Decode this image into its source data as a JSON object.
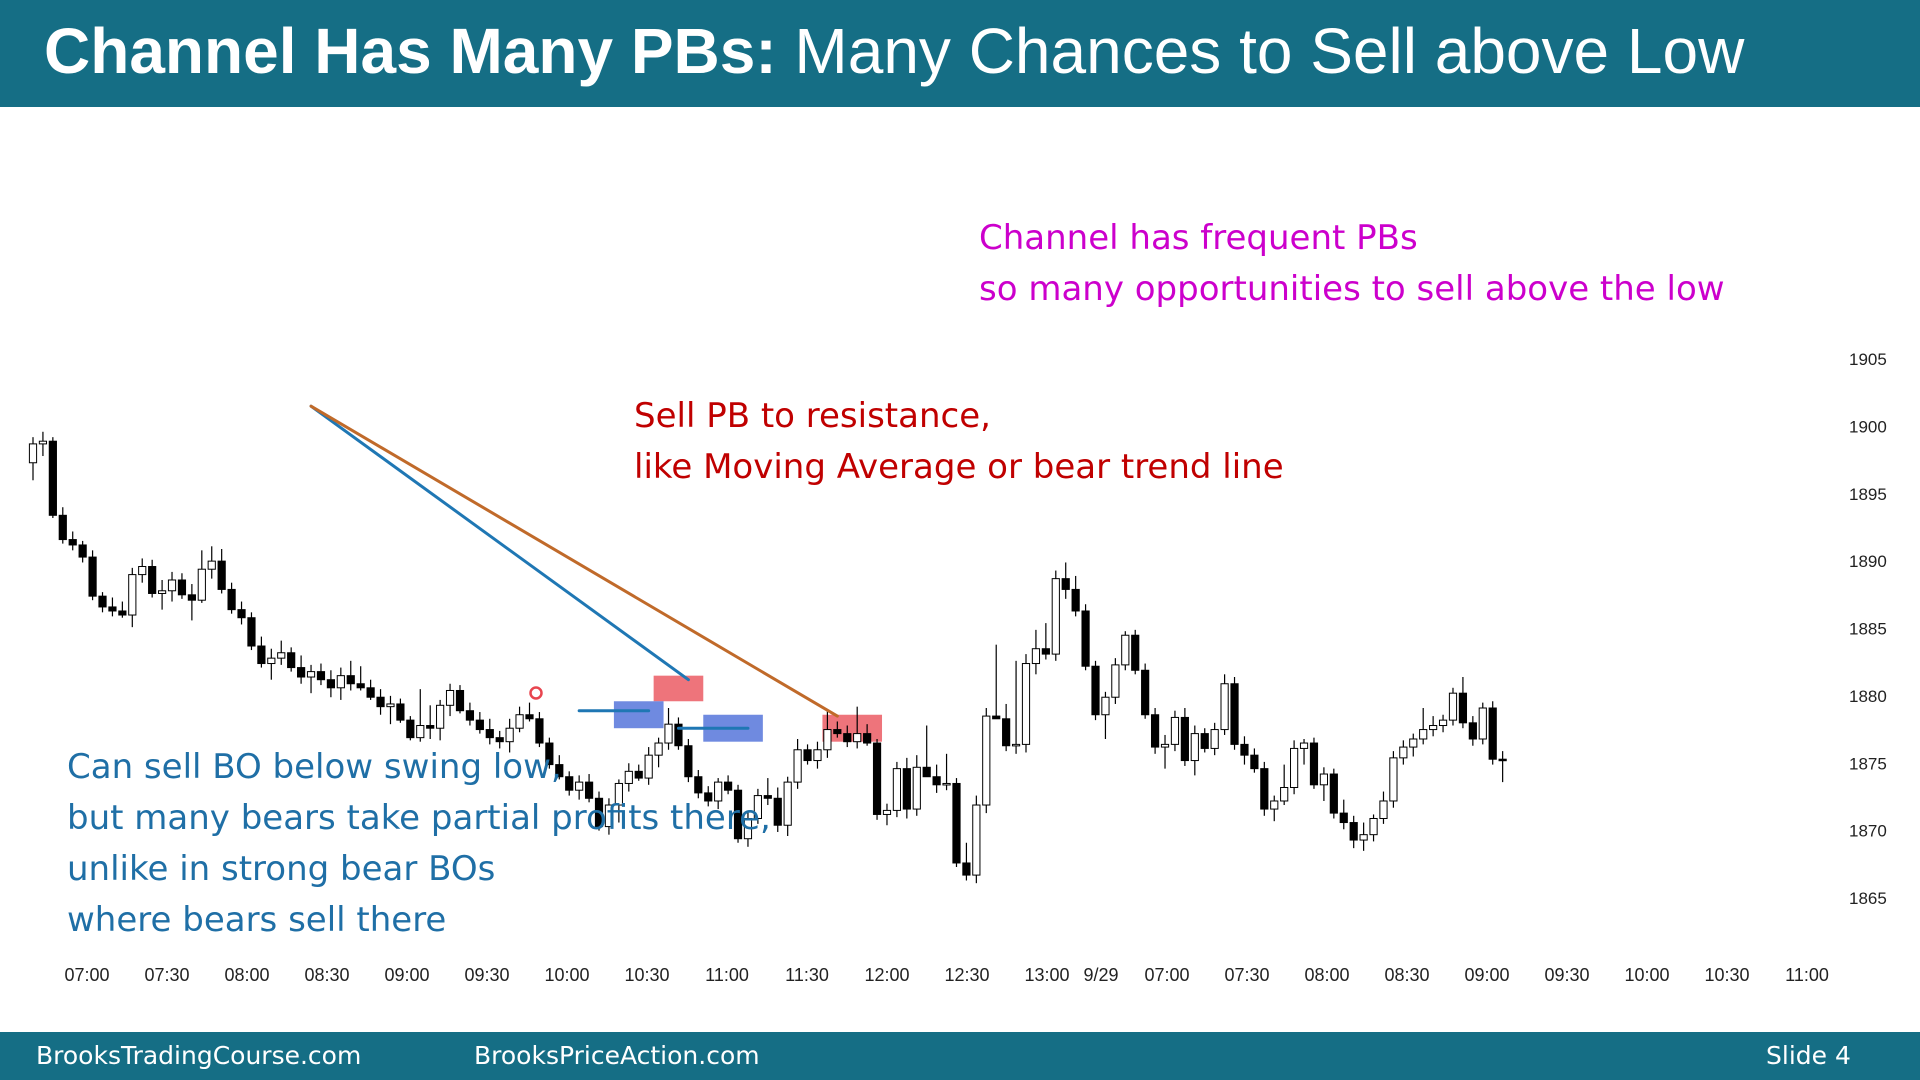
{
  "title": {
    "bold": "Channel Has Many PBs:",
    "regular": " Many Chances to Sell above Low"
  },
  "footer": {
    "left": "BrooksTradingCourse.com",
    "center": "BrooksPriceAction.com",
    "right": "Slide  4"
  },
  "annotations": {
    "magenta": [
      "Channel has frequent PBs",
      "so many opportunities to sell above the low"
    ],
    "red": [
      "Sell PB to resistance,",
      "like Moving Average or bear trend line"
    ],
    "blue": [
      "Can sell BO below swing low,",
      "but many bears take partial profits there,",
      "unlike in strong bear BOs",
      "where bears sell there"
    ]
  },
  "colors": {
    "title_bar": "#156e85",
    "magenta_text": "#cc00cc",
    "red_text": "#c00000",
    "blue_text": "#1f6fa6",
    "blue_trend_line": "#1f77b4",
    "orange_trend_line": "#c06a2a",
    "sell_highlight": "#e8454f",
    "breakout_highlight": "#3f63d6"
  },
  "chart_data": {
    "type": "candlestick",
    "x_tick_labels": [
      "07:00",
      "07:30",
      "08:00",
      "08:30",
      "09:00",
      "09:30",
      "10:00",
      "10:30",
      "11:00",
      "11:30",
      "12:00",
      "12:30",
      "13:00",
      "9/29",
      "07:00",
      "07:30",
      "08:00",
      "08:30",
      "09:00",
      "09:30",
      "10:00",
      "10:30",
      "11:00"
    ],
    "y_ticks": [
      1905,
      1900,
      1895,
      1890,
      1885,
      1880,
      1875,
      1870,
      1865
    ],
    "ylim": [
      1862,
      1912
    ],
    "candles": [
      {
        "o": 1897.3,
        "h": 1899.2,
        "l": 1896.0,
        "c": 1898.7
      },
      {
        "o": 1898.7,
        "h": 1899.6,
        "l": 1897.8,
        "c": 1898.9
      },
      {
        "o": 1898.9,
        "h": 1899.2,
        "l": 1893.2,
        "c": 1893.4
      },
      {
        "o": 1893.4,
        "h": 1894.0,
        "l": 1891.3,
        "c": 1891.6
      },
      {
        "o": 1891.6,
        "h": 1892.2,
        "l": 1890.8,
        "c": 1891.2
      },
      {
        "o": 1891.2,
        "h": 1891.5,
        "l": 1889.9,
        "c": 1890.3
      },
      {
        "o": 1890.3,
        "h": 1890.8,
        "l": 1887.1,
        "c": 1887.4
      },
      {
        "o": 1887.4,
        "h": 1887.7,
        "l": 1886.2,
        "c": 1886.6
      },
      {
        "o": 1886.6,
        "h": 1887.3,
        "l": 1885.9,
        "c": 1886.3
      },
      {
        "o": 1886.3,
        "h": 1887.0,
        "l": 1885.8,
        "c": 1886.0
      },
      {
        "o": 1886.0,
        "h": 1889.5,
        "l": 1885.1,
        "c": 1889.0
      },
      {
        "o": 1889.0,
        "h": 1890.2,
        "l": 1888.4,
        "c": 1889.6
      },
      {
        "o": 1889.6,
        "h": 1890.1,
        "l": 1887.3,
        "c": 1887.6
      },
      {
        "o": 1887.6,
        "h": 1888.6,
        "l": 1886.4,
        "c": 1887.8
      },
      {
        "o": 1887.8,
        "h": 1889.2,
        "l": 1887.0,
        "c": 1888.6
      },
      {
        "o": 1888.6,
        "h": 1889.1,
        "l": 1887.2,
        "c": 1887.5
      },
      {
        "o": 1887.5,
        "h": 1888.3,
        "l": 1885.6,
        "c": 1887.1
      },
      {
        "o": 1887.1,
        "h": 1890.8,
        "l": 1886.9,
        "c": 1889.4
      },
      {
        "o": 1889.4,
        "h": 1891.1,
        "l": 1888.7,
        "c": 1890.0
      },
      {
        "o": 1890.0,
        "h": 1890.9,
        "l": 1887.6,
        "c": 1887.9
      },
      {
        "o": 1887.9,
        "h": 1888.4,
        "l": 1886.1,
        "c": 1886.4
      },
      {
        "o": 1886.4,
        "h": 1887.0,
        "l": 1885.3,
        "c": 1885.8
      },
      {
        "o": 1885.8,
        "h": 1886.2,
        "l": 1883.4,
        "c": 1883.7
      },
      {
        "o": 1883.7,
        "h": 1884.4,
        "l": 1882.1,
        "c": 1882.4
      },
      {
        "o": 1882.4,
        "h": 1883.5,
        "l": 1881.2,
        "c": 1882.8
      },
      {
        "o": 1882.8,
        "h": 1884.1,
        "l": 1882.3,
        "c": 1883.2
      },
      {
        "o": 1883.2,
        "h": 1883.6,
        "l": 1881.8,
        "c": 1882.1
      },
      {
        "o": 1882.1,
        "h": 1883.0,
        "l": 1880.9,
        "c": 1881.4
      },
      {
        "o": 1881.4,
        "h": 1882.3,
        "l": 1880.2,
        "c": 1881.8
      },
      {
        "o": 1881.8,
        "h": 1882.4,
        "l": 1880.8,
        "c": 1881.2
      },
      {
        "o": 1881.2,
        "h": 1881.9,
        "l": 1879.9,
        "c": 1880.6
      },
      {
        "o": 1880.6,
        "h": 1882.1,
        "l": 1879.7,
        "c": 1881.5
      },
      {
        "o": 1881.5,
        "h": 1882.6,
        "l": 1880.4,
        "c": 1880.9
      },
      {
        "o": 1880.9,
        "h": 1882.2,
        "l": 1880.4,
        "c": 1880.6
      },
      {
        "o": 1880.6,
        "h": 1881.2,
        "l": 1879.7,
        "c": 1879.9
      },
      {
        "o": 1879.9,
        "h": 1880.5,
        "l": 1878.6,
        "c": 1879.2
      },
      {
        "o": 1879.2,
        "h": 1880.0,
        "l": 1877.9,
        "c": 1879.4
      },
      {
        "o": 1879.4,
        "h": 1879.8,
        "l": 1878.0,
        "c": 1878.2
      },
      {
        "o": 1878.2,
        "h": 1878.5,
        "l": 1876.7,
        "c": 1876.9
      },
      {
        "o": 1876.9,
        "h": 1880.5,
        "l": 1876.6,
        "c": 1877.8
      },
      {
        "o": 1877.8,
        "h": 1879.3,
        "l": 1876.8,
        "c": 1877.6
      },
      {
        "o": 1877.6,
        "h": 1879.7,
        "l": 1876.7,
        "c": 1879.3
      },
      {
        "o": 1879.3,
        "h": 1880.9,
        "l": 1878.5,
        "c": 1880.4
      },
      {
        "o": 1880.4,
        "h": 1880.8,
        "l": 1878.7,
        "c": 1878.9
      },
      {
        "o": 1878.9,
        "h": 1879.5,
        "l": 1877.8,
        "c": 1878.2
      },
      {
        "o": 1878.2,
        "h": 1878.8,
        "l": 1877.2,
        "c": 1877.5
      },
      {
        "o": 1877.5,
        "h": 1878.3,
        "l": 1876.4,
        "c": 1876.9
      },
      {
        "o": 1876.9,
        "h": 1877.4,
        "l": 1876.1,
        "c": 1876.6
      },
      {
        "o": 1876.6,
        "h": 1878.3,
        "l": 1875.8,
        "c": 1877.6
      },
      {
        "o": 1877.6,
        "h": 1879.2,
        "l": 1877.3,
        "c": 1878.6
      },
      {
        "o": 1878.6,
        "h": 1879.5,
        "l": 1878.1,
        "c": 1878.3
      },
      {
        "o": 1878.3,
        "h": 1878.8,
        "l": 1876.2,
        "c": 1876.5
      },
      {
        "o": 1876.5,
        "h": 1876.9,
        "l": 1874.6,
        "c": 1874.9
      },
      {
        "o": 1874.9,
        "h": 1875.6,
        "l": 1873.8,
        "c": 1874.0
      },
      {
        "o": 1874.0,
        "h": 1874.4,
        "l": 1872.6,
        "c": 1873.0
      },
      {
        "o": 1873.0,
        "h": 1874.1,
        "l": 1872.3,
        "c": 1873.6
      },
      {
        "o": 1873.6,
        "h": 1874.2,
        "l": 1872.1,
        "c": 1872.4
      },
      {
        "o": 1872.4,
        "h": 1872.9,
        "l": 1870.0,
        "c": 1870.3
      },
      {
        "o": 1870.3,
        "h": 1872.4,
        "l": 1869.7,
        "c": 1871.9
      },
      {
        "o": 1871.9,
        "h": 1873.8,
        "l": 1870.6,
        "c": 1873.5
      },
      {
        "o": 1873.5,
        "h": 1875.0,
        "l": 1872.9,
        "c": 1874.4
      },
      {
        "o": 1874.4,
        "h": 1874.9,
        "l": 1873.7,
        "c": 1873.9
      },
      {
        "o": 1873.9,
        "h": 1876.2,
        "l": 1873.4,
        "c": 1875.6
      },
      {
        "o": 1875.6,
        "h": 1876.9,
        "l": 1874.7,
        "c": 1876.5
      },
      {
        "o": 1876.5,
        "h": 1879.1,
        "l": 1876.0,
        "c": 1877.9
      },
      {
        "o": 1877.9,
        "h": 1878.4,
        "l": 1876.0,
        "c": 1876.3
      },
      {
        "o": 1876.3,
        "h": 1876.8,
        "l": 1873.6,
        "c": 1874.0
      },
      {
        "o": 1874.0,
        "h": 1874.5,
        "l": 1872.4,
        "c": 1872.8
      },
      {
        "o": 1872.8,
        "h": 1873.3,
        "l": 1871.8,
        "c": 1872.2
      },
      {
        "o": 1872.2,
        "h": 1873.9,
        "l": 1871.6,
        "c": 1873.6
      },
      {
        "o": 1873.6,
        "h": 1874.1,
        "l": 1872.7,
        "c": 1873.0
      },
      {
        "o": 1873.0,
        "h": 1873.4,
        "l": 1869.1,
        "c": 1869.4
      },
      {
        "o": 1869.4,
        "h": 1871.4,
        "l": 1868.8,
        "c": 1870.9
      },
      {
        "o": 1870.9,
        "h": 1873.1,
        "l": 1870.5,
        "c": 1872.6
      },
      {
        "o": 1872.6,
        "h": 1873.9,
        "l": 1871.9,
        "c": 1872.4
      },
      {
        "o": 1872.4,
        "h": 1873.2,
        "l": 1869.9,
        "c": 1870.4
      },
      {
        "o": 1870.4,
        "h": 1874.0,
        "l": 1869.6,
        "c": 1873.6
      },
      {
        "o": 1873.6,
        "h": 1876.8,
        "l": 1873.1,
        "c": 1876.0
      },
      {
        "o": 1876.0,
        "h": 1876.4,
        "l": 1874.9,
        "c": 1875.2
      },
      {
        "o": 1875.2,
        "h": 1876.6,
        "l": 1874.6,
        "c": 1876.0
      },
      {
        "o": 1876.0,
        "h": 1878.9,
        "l": 1875.4,
        "c": 1877.5
      },
      {
        "o": 1877.5,
        "h": 1878.1,
        "l": 1876.9,
        "c": 1877.2
      },
      {
        "o": 1877.2,
        "h": 1877.8,
        "l": 1876.2,
        "c": 1876.6
      },
      {
        "o": 1876.6,
        "h": 1879.2,
        "l": 1876.1,
        "c": 1877.2
      },
      {
        "o": 1877.2,
        "h": 1877.9,
        "l": 1876.3,
        "c": 1876.5
      },
      {
        "o": 1876.5,
        "h": 1876.8,
        "l": 1870.8,
        "c": 1871.2
      },
      {
        "o": 1871.2,
        "h": 1872.0,
        "l": 1870.4,
        "c": 1871.5
      },
      {
        "o": 1871.5,
        "h": 1875.1,
        "l": 1871.0,
        "c": 1874.6
      },
      {
        "o": 1874.6,
        "h": 1875.4,
        "l": 1870.9,
        "c": 1871.6
      },
      {
        "o": 1871.6,
        "h": 1875.6,
        "l": 1871.1,
        "c": 1874.7
      },
      {
        "o": 1874.7,
        "h": 1877.8,
        "l": 1874.0,
        "c": 1874.0
      },
      {
        "o": 1874.0,
        "h": 1874.9,
        "l": 1872.8,
        "c": 1873.4
      },
      {
        "o": 1873.4,
        "h": 1875.7,
        "l": 1873.0,
        "c": 1873.5
      },
      {
        "o": 1873.5,
        "h": 1873.9,
        "l": 1867.3,
        "c": 1867.6
      },
      {
        "o": 1867.6,
        "h": 1869.1,
        "l": 1866.3,
        "c": 1866.7
      },
      {
        "o": 1866.7,
        "h": 1872.6,
        "l": 1866.1,
        "c": 1871.9
      },
      {
        "o": 1871.9,
        "h": 1879.1,
        "l": 1871.3,
        "c": 1878.5
      },
      {
        "o": 1878.5,
        "h": 1883.8,
        "l": 1878.3,
        "c": 1878.3
      },
      {
        "o": 1878.3,
        "h": 1879.4,
        "l": 1875.9,
        "c": 1876.3
      },
      {
        "o": 1876.3,
        "h": 1882.6,
        "l": 1875.7,
        "c": 1876.4
      },
      {
        "o": 1876.4,
        "h": 1883.1,
        "l": 1875.8,
        "c": 1882.4
      },
      {
        "o": 1882.4,
        "h": 1884.9,
        "l": 1881.6,
        "c": 1883.5
      },
      {
        "o": 1883.5,
        "h": 1885.4,
        "l": 1882.7,
        "c": 1883.1
      },
      {
        "o": 1883.1,
        "h": 1889.3,
        "l": 1882.6,
        "c": 1888.7
      },
      {
        "o": 1888.7,
        "h": 1889.9,
        "l": 1887.2,
        "c": 1887.9
      },
      {
        "o": 1887.9,
        "h": 1888.9,
        "l": 1885.9,
        "c": 1886.3
      },
      {
        "o": 1886.3,
        "h": 1886.8,
        "l": 1881.9,
        "c": 1882.2
      },
      {
        "o": 1882.2,
        "h": 1882.6,
        "l": 1878.2,
        "c": 1878.6
      },
      {
        "o": 1878.6,
        "h": 1880.3,
        "l": 1876.8,
        "c": 1879.9
      },
      {
        "o": 1879.9,
        "h": 1882.8,
        "l": 1879.4,
        "c": 1882.3
      },
      {
        "o": 1882.3,
        "h": 1884.8,
        "l": 1881.9,
        "c": 1884.5
      },
      {
        "o": 1884.5,
        "h": 1884.9,
        "l": 1881.6,
        "c": 1881.9
      },
      {
        "o": 1881.9,
        "h": 1882.4,
        "l": 1878.3,
        "c": 1878.6
      },
      {
        "o": 1878.6,
        "h": 1879.1,
        "l": 1875.7,
        "c": 1876.2
      },
      {
        "o": 1876.2,
        "h": 1877.1,
        "l": 1874.6,
        "c": 1876.4
      },
      {
        "o": 1876.4,
        "h": 1878.9,
        "l": 1875.9,
        "c": 1878.4
      },
      {
        "o": 1878.4,
        "h": 1879.1,
        "l": 1874.8,
        "c": 1875.2
      },
      {
        "o": 1875.2,
        "h": 1877.8,
        "l": 1874.1,
        "c": 1877.2
      },
      {
        "o": 1877.2,
        "h": 1877.6,
        "l": 1875.8,
        "c": 1876.1
      },
      {
        "o": 1876.1,
        "h": 1878.0,
        "l": 1875.6,
        "c": 1877.5
      },
      {
        "o": 1877.5,
        "h": 1881.6,
        "l": 1877.1,
        "c": 1880.9
      },
      {
        "o": 1880.9,
        "h": 1881.4,
        "l": 1876.0,
        "c": 1876.4
      },
      {
        "o": 1876.4,
        "h": 1877.0,
        "l": 1874.9,
        "c": 1875.6
      },
      {
        "o": 1875.6,
        "h": 1876.1,
        "l": 1874.3,
        "c": 1874.6
      },
      {
        "o": 1874.6,
        "h": 1875.1,
        "l": 1871.1,
        "c": 1871.6
      },
      {
        "o": 1871.6,
        "h": 1872.6,
        "l": 1870.7,
        "c": 1872.2
      },
      {
        "o": 1872.2,
        "h": 1874.9,
        "l": 1871.9,
        "c": 1873.2
      },
      {
        "o": 1873.2,
        "h": 1876.7,
        "l": 1872.7,
        "c": 1876.1
      },
      {
        "o": 1876.1,
        "h": 1876.8,
        "l": 1874.9,
        "c": 1876.5
      },
      {
        "o": 1876.5,
        "h": 1876.9,
        "l": 1873.1,
        "c": 1873.4
      },
      {
        "o": 1873.4,
        "h": 1874.7,
        "l": 1872.2,
        "c": 1874.2
      },
      {
        "o": 1874.2,
        "h": 1874.6,
        "l": 1870.9,
        "c": 1871.3
      },
      {
        "o": 1871.3,
        "h": 1872.3,
        "l": 1870.1,
        "c": 1870.6
      },
      {
        "o": 1870.6,
        "h": 1871.1,
        "l": 1868.7,
        "c": 1869.3
      },
      {
        "o": 1869.3,
        "h": 1870.6,
        "l": 1868.5,
        "c": 1869.7
      },
      {
        "o": 1869.7,
        "h": 1871.2,
        "l": 1869.2,
        "c": 1870.9
      },
      {
        "o": 1870.9,
        "h": 1872.9,
        "l": 1870.5,
        "c": 1872.2
      },
      {
        "o": 1872.2,
        "h": 1875.9,
        "l": 1871.7,
        "c": 1875.4
      },
      {
        "o": 1875.4,
        "h": 1876.7,
        "l": 1874.9,
        "c": 1876.2
      },
      {
        "o": 1876.2,
        "h": 1877.2,
        "l": 1875.5,
        "c": 1876.8
      },
      {
        "o": 1876.8,
        "h": 1879.1,
        "l": 1876.4,
        "c": 1877.5
      },
      {
        "o": 1877.5,
        "h": 1878.5,
        "l": 1877.0,
        "c": 1877.8
      },
      {
        "o": 1877.8,
        "h": 1878.6,
        "l": 1877.3,
        "c": 1878.2
      },
      {
        "o": 1878.2,
        "h": 1880.6,
        "l": 1877.8,
        "c": 1880.2
      },
      {
        "o": 1880.2,
        "h": 1881.4,
        "l": 1877.6,
        "c": 1878.0
      },
      {
        "o": 1878.0,
        "h": 1878.5,
        "l": 1876.3,
        "c": 1876.8
      },
      {
        "o": 1876.8,
        "h": 1879.5,
        "l": 1876.4,
        "c": 1879.1
      },
      {
        "o": 1879.1,
        "h": 1879.6,
        "l": 1874.9,
        "c": 1875.3
      },
      {
        "o": 1875.3,
        "h": 1875.9,
        "l": 1873.6,
        "c": 1875.2
      }
    ],
    "trend_lines": [
      {
        "name": "blue bear trend line",
        "from": {
          "bar": 28,
          "price": 1901.5
        },
        "to": {
          "bar": 66,
          "price": 1881.2
        }
      },
      {
        "name": "orange bear trend line",
        "from": {
          "bar": 28,
          "price": 1901.5
        },
        "to": {
          "bar": 81,
          "price": 1878.5
        }
      },
      {
        "name": "swing low line 1",
        "from": {
          "bar": 55,
          "price": 1878.9
        },
        "to": {
          "bar": 62,
          "price": 1878.9
        }
      },
      {
        "name": "swing low line 2",
        "from": {
          "bar": 65,
          "price": 1877.6
        },
        "to": {
          "bar": 72,
          "price": 1877.6
        }
      }
    ],
    "highlight_boxes": [
      {
        "kind": "sell",
        "from_bar": 63,
        "to_bar": 68,
        "low": 1879.6,
        "high": 1881.5
      },
      {
        "kind": "sell",
        "from_bar": 80,
        "to_bar": 86,
        "low": 1876.6,
        "high": 1878.6
      },
      {
        "kind": "breakout",
        "from_bar": 59,
        "to_bar": 64,
        "low": 1877.6,
        "high": 1879.6
      },
      {
        "kind": "breakout",
        "from_bar": 68,
        "to_bar": 74,
        "low": 1876.6,
        "high": 1878.6
      }
    ]
  }
}
